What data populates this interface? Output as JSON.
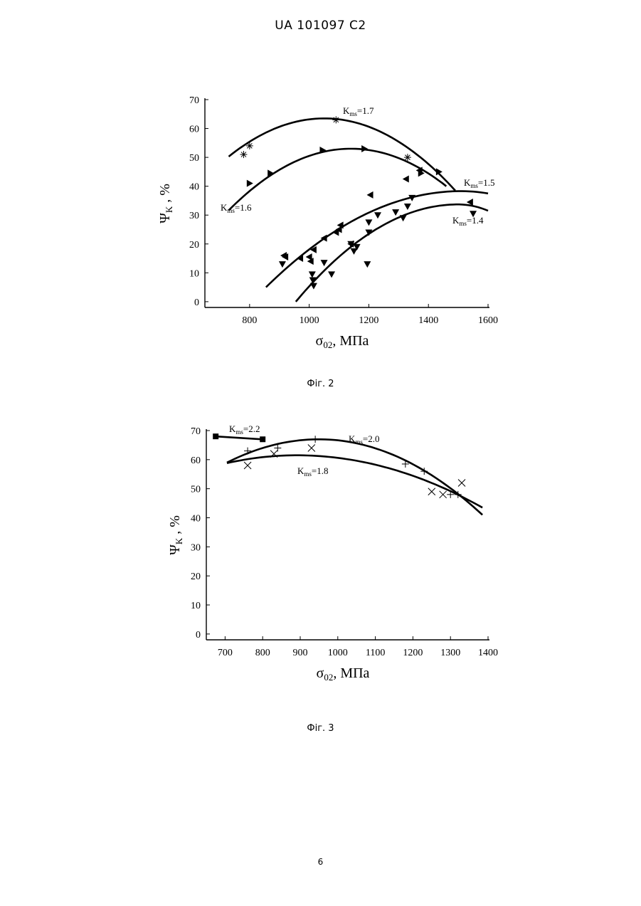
{
  "header": {
    "text": "UA   101097   C2"
  },
  "page_number": "6",
  "chart_data": [
    {
      "type": "scatter",
      "caption": "Фіг. 2",
      "xlabel": "σ",
      "xlabel_sub": "02",
      "xlabel_unit": ", МПа",
      "ylabel": "Ψ",
      "ylabel_sub": "K",
      "ylabel_unit": " , %",
      "xlim": [
        650,
        1600
      ],
      "ylim": [
        -2,
        70
      ],
      "xticks": [
        800,
        1000,
        1200,
        1400,
        1600
      ],
      "yticks": [
        0,
        10,
        20,
        30,
        40,
        50,
        60,
        70
      ],
      "grid": false,
      "series": [
        {
          "name": "Kms=1.7",
          "label_main": "K",
          "label_sub": "ms",
          "label_val": "=1.7",
          "marker": "asterisk",
          "points": [
            [
              780,
              51
            ],
            [
              800,
              54
            ],
            [
              1090,
              63
            ],
            [
              1330,
              50
            ]
          ],
          "curve": {
            "type": "quadratic",
            "x_range": [
              730,
              1490
            ],
            "peak_x": 1050,
            "peak_y": 63.5,
            "end_y": 38.5
          }
        },
        {
          "name": "Kms=1.6",
          "label_main": "K",
          "label_sub": "ms",
          "label_val": "=1.6",
          "marker": "triangle-right",
          "points": [
            [
              800,
              41
            ],
            [
              870,
              44.5
            ],
            [
              1045,
              52.5
            ],
            [
              1185,
              53
            ],
            [
              1375,
              44.5
            ],
            [
              1435,
              45
            ]
          ],
          "curve": {
            "type": "quadratic",
            "x_range": [
              730,
              1460
            ],
            "peak_x": 1140,
            "peak_y": 53,
            "end_y": 40
          }
        },
        {
          "name": "Kms=1.5",
          "label_main": "K",
          "label_sub": "ms",
          "label_val": "=1.5",
          "marker": "triangle-left",
          "points": [
            [
              915,
              16
            ],
            [
              920,
              15.5
            ],
            [
              970,
              15
            ],
            [
              1000,
              15.5
            ],
            [
              1005,
              14
            ],
            [
              1015,
              18
            ],
            [
              1050,
              22
            ],
            [
              1090,
              24
            ],
            [
              1100,
              25
            ],
            [
              1105,
              26.5
            ],
            [
              1140,
              20
            ],
            [
              1205,
              37
            ],
            [
              1325,
              42.5
            ],
            [
              1370,
              45.5
            ],
            [
              1540,
              34.5
            ]
          ],
          "curve": {
            "type": "quadratic",
            "x_range": [
              855,
              1600
            ],
            "peak_x": 1510,
            "peak_y": 38.3,
            "start_y": 5,
            "end_y": 37.5
          }
        },
        {
          "name": "Kms=1.4",
          "label_main": "K",
          "label_sub": "ms",
          "label_val": "=1.4",
          "marker": "triangle-down",
          "points": [
            [
              910,
              13
            ],
            [
              1010,
              9.5
            ],
            [
              1012,
              7.5
            ],
            [
              1015,
              5.5
            ],
            [
              1050,
              13.5
            ],
            [
              1075,
              9.5
            ],
            [
              1140,
              20
            ],
            [
              1150,
              17.5
            ],
            [
              1160,
              19
            ],
            [
              1195,
              13
            ],
            [
              1200,
              24
            ],
            [
              1200,
              27.5
            ],
            [
              1230,
              30
            ],
            [
              1290,
              31
            ],
            [
              1315,
              29
            ],
            [
              1330,
              33
            ],
            [
              1345,
              36
            ],
            [
              1550,
              30.5
            ]
          ],
          "curve": {
            "type": "quadratic",
            "x_range": [
              955,
              1600
            ],
            "peak_x": 1500,
            "peak_y": 33.7,
            "start_y": 0,
            "end_y": 31.5
          }
        }
      ]
    },
    {
      "type": "scatter",
      "caption": "Фіг. 3",
      "xlabel": "σ",
      "xlabel_sub": "02",
      "xlabel_unit": ", МПа",
      "ylabel": "Ψ",
      "ylabel_sub": "K",
      "ylabel_unit": " , %",
      "xlim": [
        650,
        1400
      ],
      "ylim": [
        -2,
        70
      ],
      "xticks": [
        700,
        800,
        900,
        1000,
        1100,
        1200,
        1300,
        1400
      ],
      "yticks": [
        0,
        10,
        20,
        30,
        40,
        50,
        60,
        70
      ],
      "grid": false,
      "series": [
        {
          "name": "Kms=2.2",
          "label_main": "K",
          "label_sub": "ms",
          "label_val": "=2.2",
          "marker": "square",
          "points": [
            [
              675,
              68
            ],
            [
              800,
              67
            ]
          ],
          "curve": {
            "type": "line",
            "x_range": [
              675,
              800
            ],
            "y_range": [
              68,
              67
            ]
          }
        },
        {
          "name": "Kms=2.0",
          "label_main": "K",
          "label_sub": "ms",
          "label_val": "=2.0",
          "marker": "plus",
          "points": [
            [
              760,
              63
            ],
            [
              840,
              64
            ],
            [
              940,
              67
            ],
            [
              1180,
              58.5
            ],
            [
              1230,
              56
            ],
            [
              1300,
              48
            ],
            [
              1320,
              48
            ]
          ],
          "curve": {
            "type": "quadratic",
            "x_range": [
              705,
              1385
            ],
            "peak_x": 950,
            "peak_y": 67,
            "start_y": 59,
            "end_y": 41
          }
        },
        {
          "name": "Kms=1.8",
          "label_main": "K",
          "label_sub": "ms",
          "label_val": "=1.8",
          "marker": "cross",
          "points": [
            [
              760,
              58
            ],
            [
              830,
              62
            ],
            [
              930,
              64
            ],
            [
              1250,
              49
            ],
            [
              1280,
              48
            ],
            [
              1330,
              52
            ]
          ],
          "curve": {
            "type": "quadratic",
            "x_range": [
              705,
              1385
            ],
            "peak_x": 890,
            "peak_y": 61.5,
            "start_y": 58.8,
            "end_y": 43.5
          }
        }
      ]
    }
  ]
}
